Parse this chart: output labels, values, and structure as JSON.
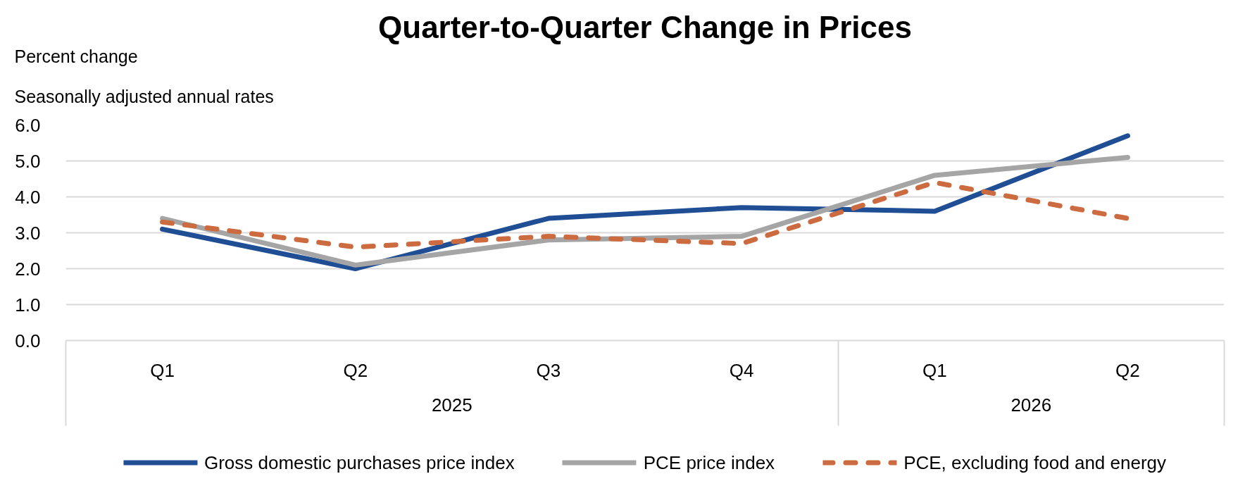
{
  "chart_data": {
    "type": "line",
    "title": "Quarter-to-Quarter Change in Prices",
    "ylabel": "Percent change",
    "subtitle": "Seasonally adjusted annual rates",
    "categories": [
      "Q1",
      "Q2",
      "Q3",
      "Q4",
      "Q1",
      "Q2"
    ],
    "annotations": [
      {
        "text": "2025"
      },
      {
        "text": "2026"
      }
    ],
    "series": [
      {
        "name": "Gross domestic purchases price index",
        "color": "#1f4e94",
        "values": [
          3.1,
          2.0,
          3.4,
          3.7,
          3.6,
          5.7
        ],
        "line_style": "solid"
      },
      {
        "name": "PCE price index",
        "color": "#a5a5a5",
        "values": [
          3.4,
          2.1,
          2.8,
          2.9,
          4.6,
          5.1
        ],
        "line_style": "solid"
      },
      {
        "name": "PCE, excluding food and energy",
        "color": "#cc6a40",
        "values": [
          3.3,
          2.6,
          2.9,
          2.7,
          4.4,
          3.4
        ],
        "line_style": "dashed"
      }
    ],
    "ylim": [
      0,
      6
    ],
    "yticks": [
      {
        "value": 0,
        "label": "0.0"
      },
      {
        "value": 1,
        "label": "1.0"
      },
      {
        "value": 2,
        "label": "2.0"
      },
      {
        "value": 3,
        "label": "3.0"
      },
      {
        "value": 4,
        "label": "4.0"
      },
      {
        "value": 5,
        "label": "5.0"
      },
      {
        "value": 6,
        "label": "6.0"
      }
    ],
    "grid": "y",
    "legend": "bottom"
  }
}
